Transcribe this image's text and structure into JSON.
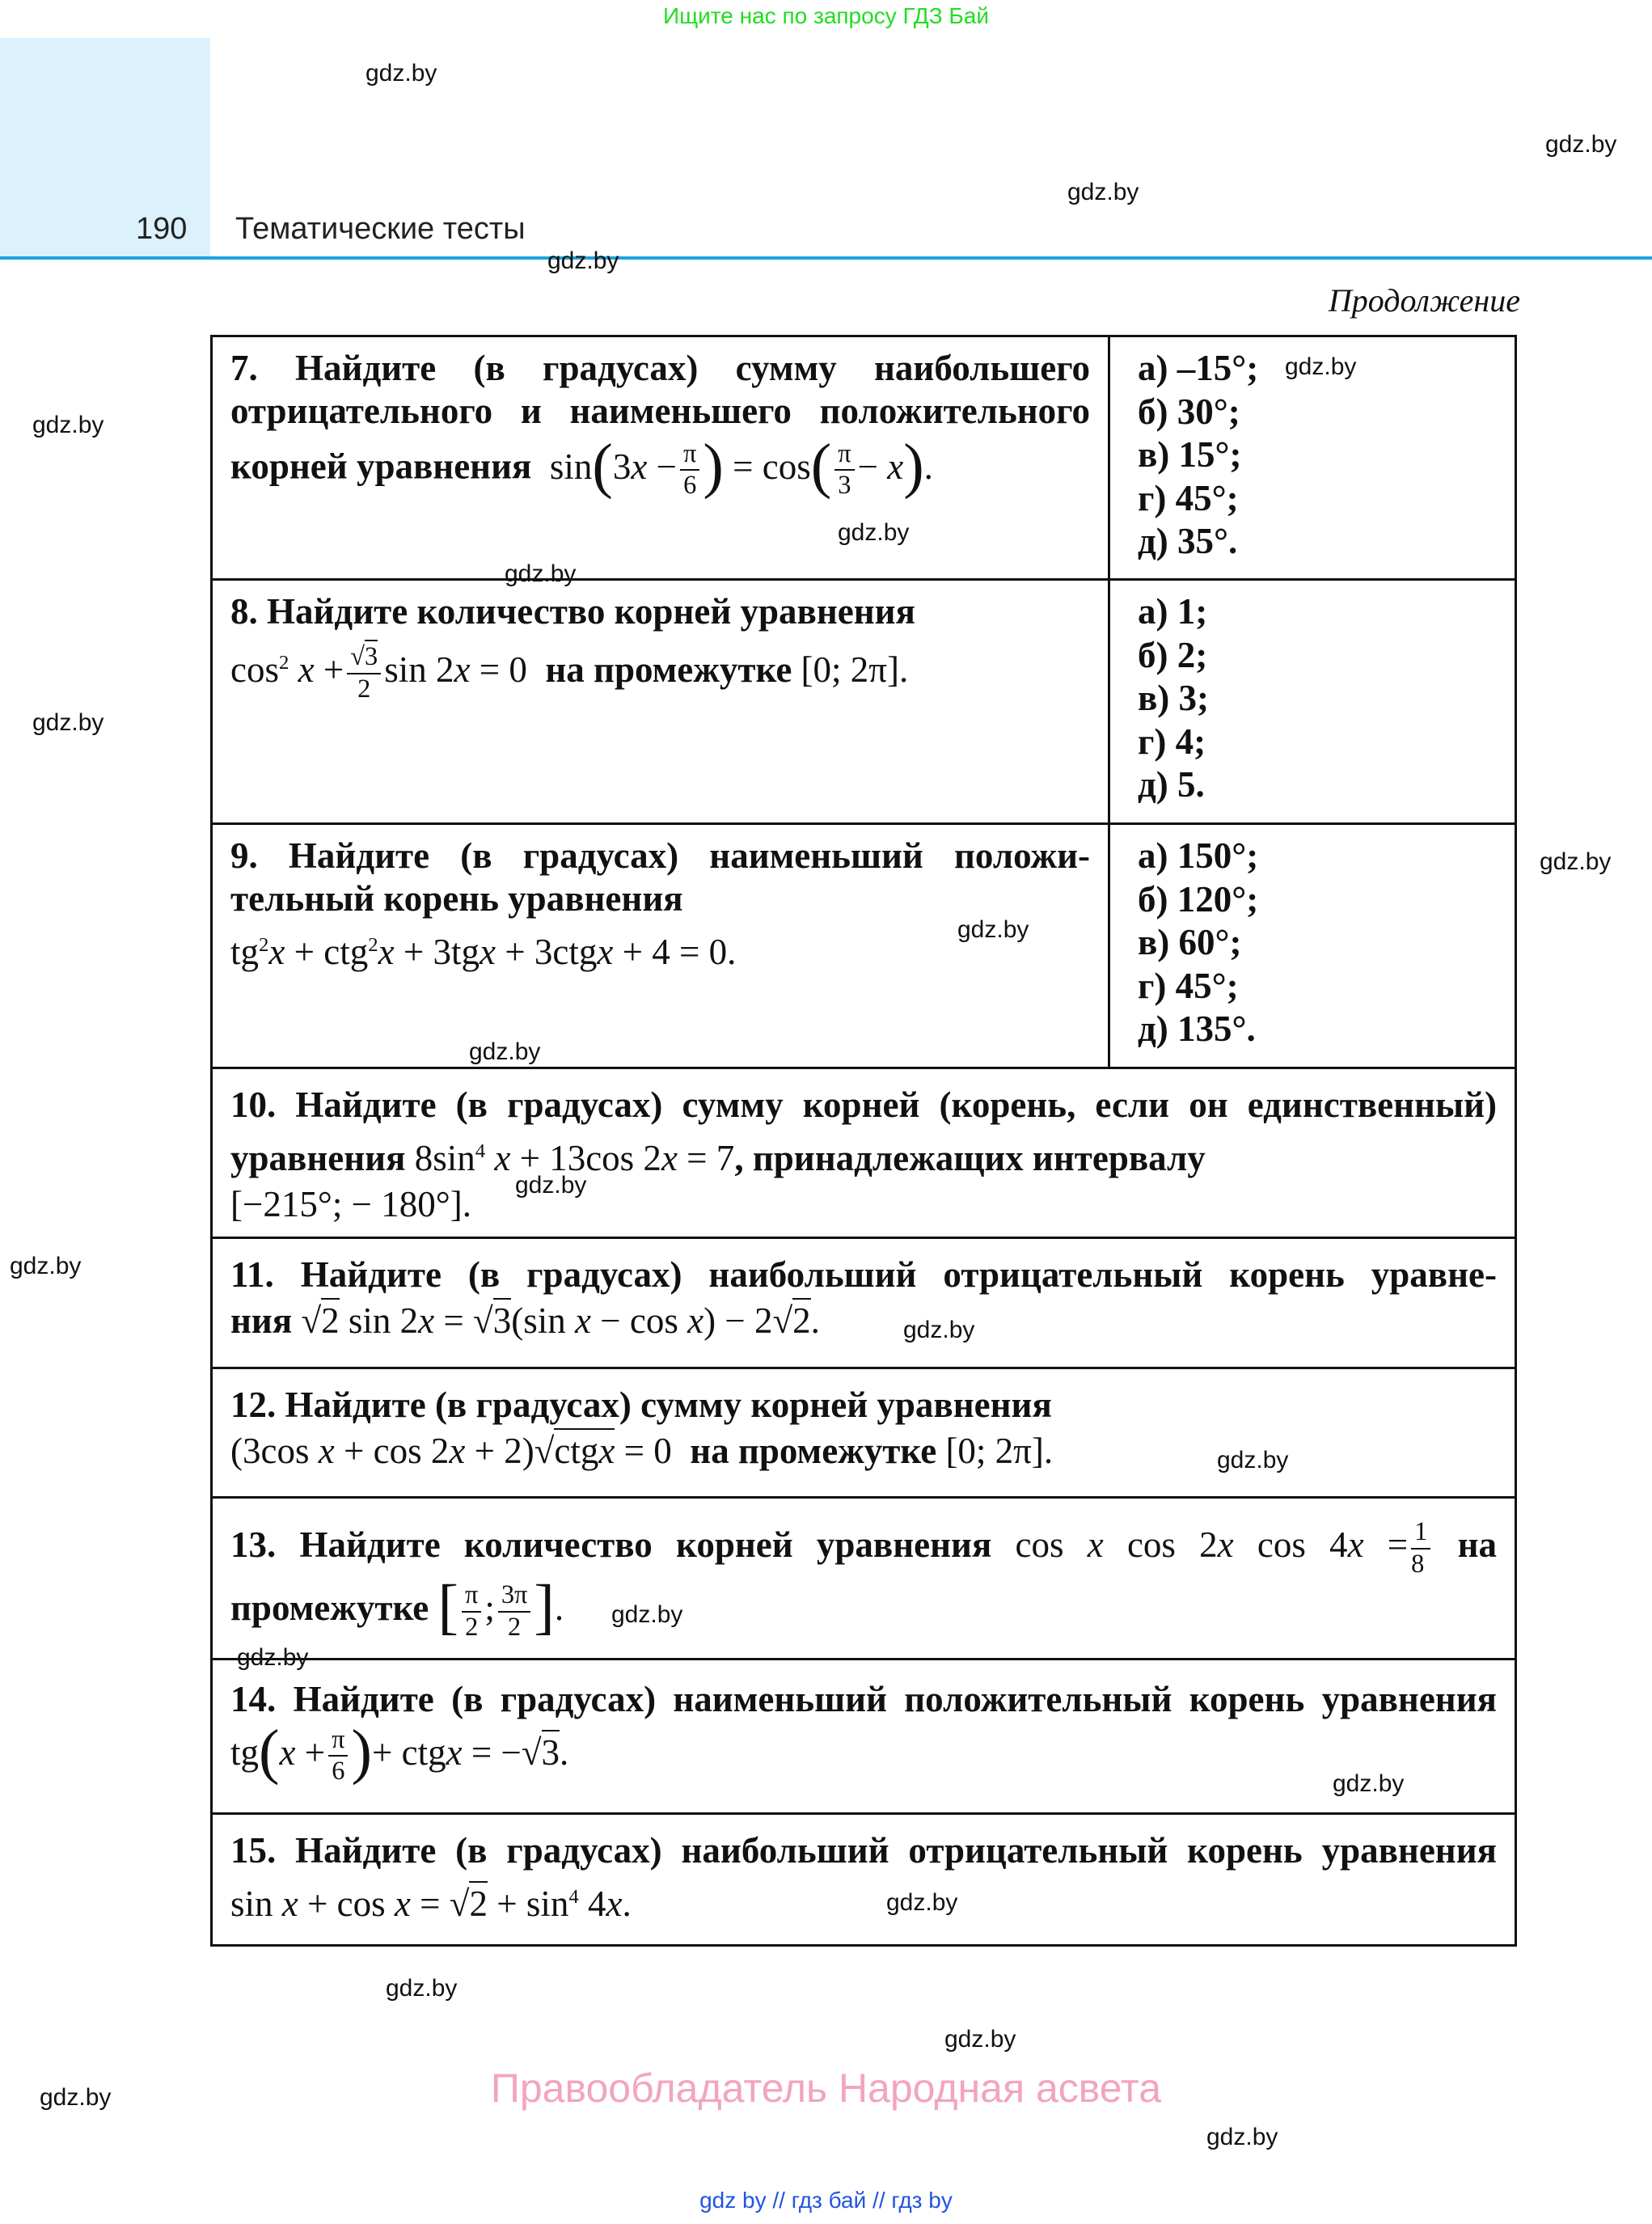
{
  "header": {
    "search_note": "Ищите нас по запросу ГДЗ Бай",
    "page_number": "190",
    "section_title": "Тематические тесты",
    "continued": "Продолжение"
  },
  "colors": {
    "accent_blue": "#1fa3dc",
    "header_block": "#dbf1fc",
    "note_green": "#22dd22",
    "footer_pink": "#f2a5bd",
    "link_blue": "#2255dd"
  },
  "watermark": "gdz.by",
  "problems": [
    {
      "num": "7.",
      "lines": [
        "Найдите (в градусах) сумму наибольшего",
        "отрицательного и наименьшего положительного",
        "корней уравнения"
      ],
      "math": [
        "sin",
        "(",
        "3x −",
        "π",
        "6",
        ")",
        "= cos",
        "(",
        "π",
        "3",
        "− x",
        ")",
        "."
      ],
      "options": [
        "а) –15°;",
        "б) 30°;",
        "в) 15°;",
        "г) 45°;",
        "д) 35°."
      ]
    },
    {
      "num": "8.",
      "lines": [
        "Найдите количество корней уравнения",
        "на промежутке"
      ],
      "math": [
        "cos",
        "2",
        " x +",
        "√",
        "3",
        "2",
        "sin 2x = 0",
        "[0; 2π]."
      ],
      "options": [
        "а) 1;",
        "б) 2;",
        "в) 3;",
        "г) 4;",
        "д) 5."
      ]
    },
    {
      "num": "9.",
      "lines": [
        "Найдите (в градусах) наименьший положи-",
        "тельный корень уравнения"
      ],
      "math": [
        "tg",
        "2",
        "x + ctg",
        "2",
        "x + 3tgx + 3ctgx + 4 = 0."
      ],
      "options": [
        "а) 150°;",
        "б) 120°;",
        "в) 60°;",
        "г) 45°;",
        "д) 135°."
      ]
    },
    {
      "num": "10.",
      "lines": [
        "Найдите (в градусах) сумму корней (корень, если он единственный)",
        "уравнения",
        ", принадлежащих интервалу"
      ],
      "math": [
        "8sin",
        "4",
        " x + 13cos 2x = 7",
        "[−215°; − 180°]."
      ]
    },
    {
      "num": "11.",
      "lines": [
        "Найдите (в градусах) наибольший отрицательный корень уравне-",
        "ния"
      ],
      "math": [
        "√",
        "2",
        " sin 2x =",
        "√",
        "3",
        "(sin x − cos x) − 2",
        "√",
        "2",
        "."
      ]
    },
    {
      "num": "12.",
      "lines": [
        "Найдите (в градусах) сумму корней уравнения",
        "на промежутке"
      ],
      "math": [
        "(3cos x + cos 2x + 2)",
        "√",
        "ctgx",
        " = 0",
        "[0; 2π]."
      ]
    },
    {
      "num": "13.",
      "lines": [
        "Найдите количество корней уравнения",
        "на",
        "промежутке"
      ],
      "math": [
        "cos x cos 2x cos 4x =",
        "1",
        "8",
        "[",
        "π",
        "2",
        ";",
        "3π",
        "2",
        "]",
        "."
      ]
    },
    {
      "num": "14.",
      "lines": [
        "Найдите (в градусах) наименьший положительный корень уравнения"
      ],
      "math": [
        "tg",
        "(",
        "x +",
        "π",
        "6",
        ")",
        "+ ctgx = −",
        "√",
        "3",
        "."
      ]
    },
    {
      "num": "15.",
      "lines": [
        "Найдите (в градусах) наибольший отрицательный корень уравнения"
      ],
      "math": [
        "sin x + cos x =",
        "√",
        "2",
        " + sin",
        "4",
        " 4x."
      ]
    }
  ],
  "footer": {
    "rights_holder": "Правообладатель Народная асвета",
    "links": [
      "gdz by",
      "//",
      "гдз бай",
      "//",
      "гдз by"
    ]
  }
}
